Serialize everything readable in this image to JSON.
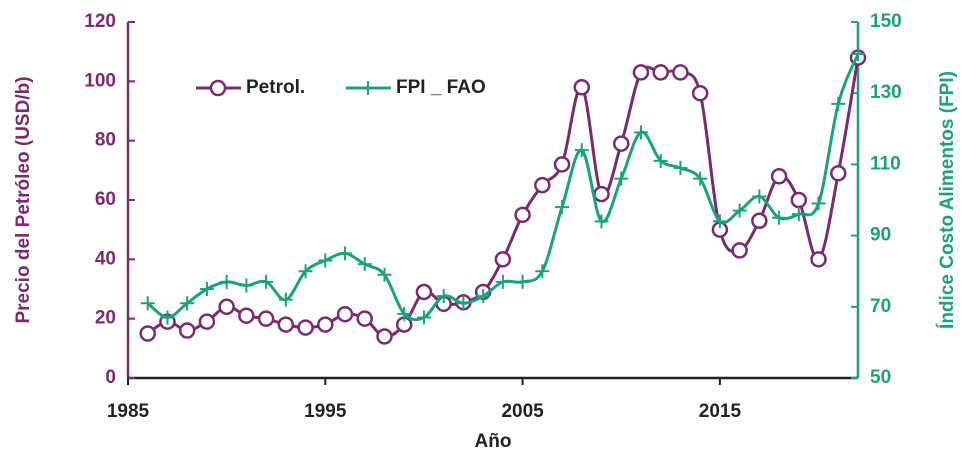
{
  "chart_data": {
    "type": "line",
    "x_label": "Año",
    "y_label": "Precio del Petróleo (USD/b)",
    "y2_label": "Índice Costo Alimentos (FPI)",
    "x": [
      1986,
      1987,
      1988,
      1989,
      1990,
      1991,
      1992,
      1993,
      1994,
      1995,
      1996,
      1997,
      1998,
      1999,
      2000,
      2001,
      2002,
      2003,
      2004,
      2005,
      2006,
      2007,
      2008,
      2009,
      2010,
      2011,
      2012,
      2013,
      2014,
      2015,
      2016,
      2017,
      2018,
      2019,
      2020,
      2021,
      2022
    ],
    "series": [
      {
        "name": "Petrol.",
        "color": "#7b2a6e",
        "marker": "circle",
        "values": [
          15,
          19,
          16,
          19,
          24,
          21,
          20,
          18,
          17,
          18,
          21.5,
          20,
          14,
          18,
          29,
          25,
          25.5,
          29,
          40,
          55,
          65,
          72,
          98,
          62,
          79,
          103,
          103,
          103,
          96,
          50,
          43,
          53,
          68,
          60,
          40,
          69,
          108
        ]
      },
      {
        "name": "FPI _ FAO",
        "color": "#1aa37a",
        "marker": "plus",
        "axis": "y2",
        "values": [
          71,
          67,
          71,
          75,
          77,
          76,
          77,
          72,
          80,
          83,
          85,
          82,
          79,
          68,
          67,
          73,
          71,
          73,
          77,
          77,
          80,
          98,
          114,
          94,
          106,
          119,
          111,
          109,
          106,
          94,
          97,
          101,
          95,
          96,
          99,
          127,
          141
        ]
      }
    ],
    "xlim": [
      1985,
      2022
    ],
    "xticks": [
      1985,
      1995,
      2005,
      2015
    ],
    "ylim": [
      0,
      120
    ],
    "yticks": [
      0,
      20,
      40,
      60,
      80,
      100,
      120
    ],
    "y2lim": [
      50,
      150
    ],
    "y2ticks": [
      50,
      70,
      90,
      110,
      130,
      150
    ],
    "legend": "upper left",
    "smooth": true
  }
}
